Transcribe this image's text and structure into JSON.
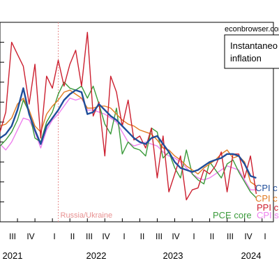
{
  "chart_data": {
    "type": "line",
    "watermark": "econbrowser.com",
    "legend_title_lines": [
      "Instantaneo",
      "inflation"
    ],
    "annotation": "Russia/Ukraine",
    "quarter_labels": [
      "I",
      "II",
      "III",
      "IV"
    ],
    "years": [
      "2021",
      "2022",
      "2023",
      "2024"
    ],
    "grid": false,
    "colors": {
      "cpi_core": "#1f4e9a",
      "cpi_c_orange": "#e07a20",
      "ppi": "#cc2030",
      "pce_core": "#3a9a3a",
      "cpi_s": "#ee80ee",
      "annotation": "#e89090"
    },
    "series": [
      {
        "name": "CPI c",
        "key": "cpi_core",
        "label_text": "CPI c",
        "values": [
          4.2,
          4.4,
          4.8,
          5.6,
          6.7,
          5.4,
          4.6,
          3.9,
          4.8,
          5.2,
          5.6,
          6.1,
          6.4,
          6.6,
          6.5,
          5.4,
          5.5,
          5.9,
          5.6,
          5.3,
          5.1,
          4.8,
          4.5,
          4.2,
          4.0,
          3.9,
          4.2,
          4.3,
          3.9,
          3.5,
          3.0,
          2.7,
          2.6,
          2.5,
          2.6,
          2.8,
          3.0,
          3.1,
          3.2,
          3.4,
          3.4,
          3.3,
          2.9,
          2.3,
          2.2
        ]
      },
      {
        "name": "CPI c (orange)",
        "key": "cpi_c_orange",
        "label_text": "CPI c",
        "values": [
          4.8,
          4.9,
          5.2,
          5.9,
          6.2,
          5.6,
          4.8,
          4.5,
          5.4,
          5.8,
          6.1,
          6.5,
          6.6,
          6.4,
          6.2,
          5.7,
          5.7,
          5.8,
          5.8,
          5.7,
          5.4,
          5.1,
          4.9,
          4.8,
          4.6,
          4.5,
          4.4,
          4.1,
          3.7,
          3.6,
          3.3,
          3.1,
          2.8,
          2.6,
          2.4,
          2.7,
          2.9,
          3.1,
          3.4,
          3.6,
          3.2,
          3.3,
          3.0,
          2.0,
          1.8
        ]
      },
      {
        "name": "PPI c",
        "key": "ppi",
        "label_text": "PPI c",
        "values": [
          4.5,
          5.5,
          9.0,
          8.4,
          7.8,
          5.9,
          7.9,
          4.2,
          7.3,
          6.7,
          8.1,
          6.8,
          7.9,
          8.6,
          6.8,
          9.5,
          5.3,
          6.0,
          3.3,
          7.3,
          6.5,
          4.8,
          6.1,
          4.1,
          4.3,
          3.7,
          4.7,
          2.2,
          4.3,
          1.5,
          2.4,
          3.3,
          1.1,
          1.6,
          1.7,
          2.6,
          2.4,
          2.8,
          3.5,
          1.5,
          3.4,
          3.4,
          2.2,
          3.3,
          1.4
        ]
      },
      {
        "name": "PCE core",
        "key": "pce_core",
        "label_text": "PCE core",
        "values": [
          3.8,
          4.1,
          4.5,
          5.1,
          6.1,
          5.5,
          4.2,
          4.0,
          5.0,
          5.5,
          6.4,
          7.0,
          6.7,
          6.6,
          6.8,
          6.2,
          6.8,
          5.9,
          4.9,
          4.4,
          5.7,
          3.4,
          4.0,
          3.7,
          3.6,
          3.3,
          4.7,
          4.5,
          3.2,
          3.5,
          2.7,
          2.2,
          3.6,
          2.4,
          2.1,
          1.9,
          3.0,
          2.6,
          2.2,
          2.9,
          3.1,
          2.5,
          2.0,
          1.5,
          1.2
        ]
      },
      {
        "name": "CPI s",
        "key": "cpi_s",
        "label_text": "CPI s",
        "values": [
          3.9,
          3.6,
          4.0,
          4.6,
          5.2,
          5.1,
          4.5,
          3.7,
          4.6,
          5.1,
          5.4,
          5.8,
          6.2,
          6.1,
          6.2,
          5.6,
          5.6,
          5.5,
          5.4,
          5.2,
          5.0,
          4.5,
          4.0,
          3.8,
          3.9,
          4.0,
          3.9,
          3.8,
          3.5,
          3.3,
          3.2,
          3.0,
          2.7,
          2.4,
          2.2,
          2.1,
          2.2,
          2.4,
          2.6,
          2.8,
          2.7,
          2.6,
          2.1,
          1.6,
          1.6
        ]
      }
    ]
  }
}
